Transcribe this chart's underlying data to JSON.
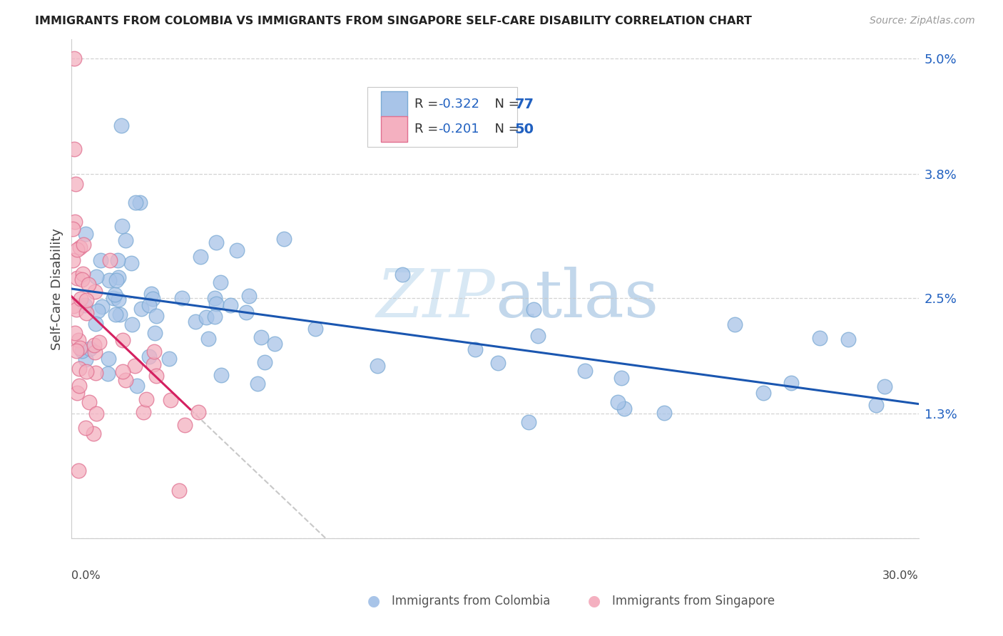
{
  "title": "IMMIGRANTS FROM COLOMBIA VS IMMIGRANTS FROM SINGAPORE SELF-CARE DISABILITY CORRELATION CHART",
  "source": "Source: ZipAtlas.com",
  "ylabel": "Self-Care Disability",
  "colombia_color": "#a8c4e8",
  "colombia_edge": "#7baad4",
  "singapore_color": "#f4b0c0",
  "singapore_edge": "#e07090",
  "trend_colombia_color": "#1a56b0",
  "trend_singapore_color": "#d42060",
  "trend_singapore_ext_color": "#c8c8c8",
  "legend_R_label": "R = ",
  "legend_R_colombia_val": "-0.322",
  "legend_N_colombia": "N = 77",
  "legend_R_singapore_val": "-0.201",
  "legend_N_singapore": "N = 50",
  "legend_text_color": "#333333",
  "legend_val_color": "#2060c0",
  "xlim": [
    0.0,
    30.0
  ],
  "ylim": [
    0.0,
    5.2
  ],
  "ytick_positions": [
    0.0,
    1.3,
    2.5,
    3.8,
    5.0
  ],
  "ytick_labels": [
    "",
    "1.3%",
    "2.5%",
    "3.8%",
    "5.0%"
  ],
  "ytick_color": "#2060c0",
  "grid_color": "#c8c8c8",
  "background_color": "#ffffff",
  "watermark": "ZIPatlas",
  "watermark_color": "#d8e8f4",
  "bottom_label_colombia": "Immigrants from Colombia",
  "bottom_label_singapore": "Immigrants from Singapore"
}
